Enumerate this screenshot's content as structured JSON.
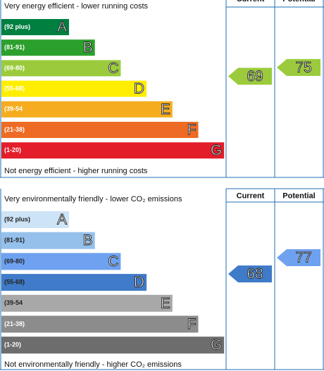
{
  "chart_data": [
    {
      "type": "epc",
      "title": "Very energy efficient - lower running costs",
      "footer": "Not energy efficient - higher running costs",
      "bands": [
        {
          "label": "(92 plus)",
          "letter": "A",
          "color": "#008040",
          "label_color": "#ffffff"
        },
        {
          "label": "(81-91)",
          "letter": "B",
          "color": "#2ca02c",
          "label_color": "#ffffff"
        },
        {
          "label": "(69-80)",
          "letter": "C",
          "color": "#9bcb3c",
          "label_color": "#ffffff"
        },
        {
          "label": "(55-68)",
          "letter": "D",
          "color": "#ffee00",
          "label_color": "#ffffff"
        },
        {
          "label": "(39-54",
          "letter": "E",
          "color": "#f5ad1f",
          "label_color": "#ffffff"
        },
        {
          "label": "(21-38)",
          "letter": "F",
          "color": "#ee6b25",
          "label_color": "#ffffff"
        },
        {
          "label": "(1-20)",
          "letter": "G",
          "color": "#e31d2a",
          "label_color": "#ffffff"
        }
      ],
      "series": [
        {
          "name": "Current",
          "value": 69
        },
        {
          "name": "Potential",
          "value": 75
        }
      ]
    },
    {
      "type": "epc",
      "title": "Very environmentally friendly - lower CO₂ emissions",
      "footer": "Not environmentally friendly - higher CO₂ emissions",
      "bands": [
        {
          "label": "(92 plus)",
          "letter": "A",
          "color": "#cde4f7",
          "label_color": "#222222"
        },
        {
          "label": "(81-91)",
          "letter": "B",
          "color": "#95c0ec",
          "label_color": "#222222"
        },
        {
          "label": "(69-80)",
          "letter": "C",
          "color": "#6ea1f0",
          "label_color": "#222222"
        },
        {
          "label": "(55-68)",
          "letter": "D",
          "color": "#3f7bc8",
          "label_color": "#222222"
        },
        {
          "label": "(39-54",
          "letter": "E",
          "color": "#a8a8a8",
          "label_color": "#222222"
        },
        {
          "label": "(21-38)",
          "letter": "F",
          "color": "#8c8c8c",
          "label_color": "#ffffff"
        },
        {
          "label": "(1-20)",
          "letter": "G",
          "color": "#6d6d6d",
          "label_color": "#ffffff"
        }
      ],
      "series": [
        {
          "name": "Current",
          "value": 68
        },
        {
          "name": "Potential",
          "value": 77
        }
      ]
    }
  ]
}
